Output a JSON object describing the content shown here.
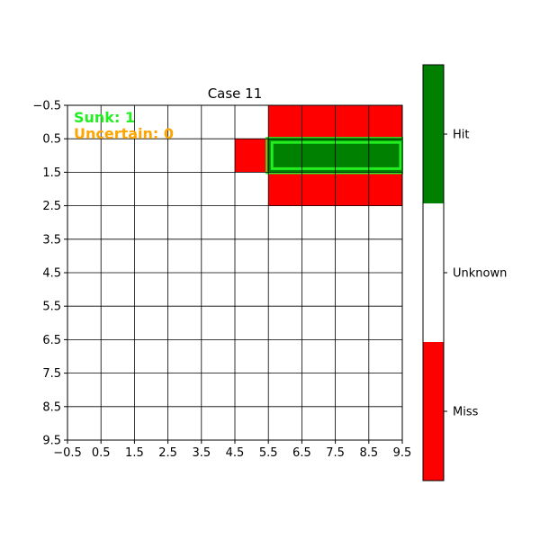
{
  "title": "Case 11",
  "grid": {
    "rows": 10,
    "cols": 10,
    "miss_cells": [
      [
        0,
        6
      ],
      [
        0,
        7
      ],
      [
        0,
        8
      ],
      [
        0,
        9
      ],
      [
        1,
        5
      ],
      [
        2,
        6
      ],
      [
        2,
        7
      ],
      [
        2,
        8
      ],
      [
        2,
        9
      ]
    ],
    "hit_cells": [
      [
        1,
        6
      ],
      [
        1,
        7
      ],
      [
        1,
        8
      ],
      [
        1,
        9
      ]
    ],
    "sunk_ship": {
      "row": 1,
      "col_start": 6,
      "col_end": 9
    }
  },
  "axes": {
    "x_ticks": [
      "−0.5",
      "0.5",
      "1.5",
      "2.5",
      "3.5",
      "4.5",
      "5.5",
      "6.5",
      "7.5",
      "8.5",
      "9.5"
    ],
    "y_ticks": [
      "−0.5",
      "0.5",
      "1.5",
      "2.5",
      "3.5",
      "4.5",
      "5.5",
      "6.5",
      "7.5",
      "8.5",
      "9.5"
    ]
  },
  "status": {
    "sunk_text": "Sunk: 1",
    "uncertain_text": "Uncertain: 0",
    "sunk_color": "#22ee22",
    "uncertain_color": "#ffa500"
  },
  "legend": {
    "items": [
      {
        "label": "Hit",
        "color": "#008000"
      },
      {
        "label": "Unknown",
        "color": "#ffffff"
      },
      {
        "label": "Miss",
        "color": "#ff0000"
      }
    ]
  },
  "colors": {
    "hit": "#008000",
    "miss": "#ff0000",
    "unknown": "#ffffff",
    "sunk_outline": "#22ee22",
    "grid_line": "#000000"
  }
}
